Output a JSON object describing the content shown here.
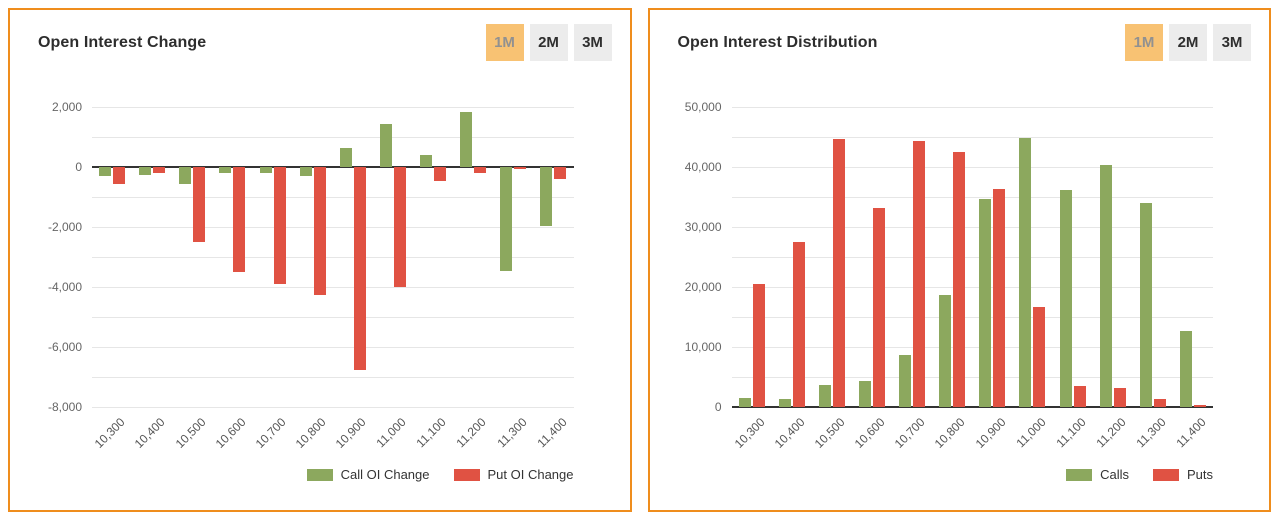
{
  "panels": [
    {
      "title": "Open Interest Change",
      "range_buttons": [
        {
          "label": "1M",
          "active": true
        },
        {
          "label": "2M",
          "active": false
        },
        {
          "label": "3M",
          "active": false
        }
      ]
    },
    {
      "title": "Open Interest Distribution",
      "range_buttons": [
        {
          "label": "1M",
          "active": true
        },
        {
          "label": "2M",
          "active": false
        },
        {
          "label": "3M",
          "active": false
        }
      ]
    }
  ],
  "colors": {
    "panel_border": "#ef8d1d",
    "active_button_bg": "#f8c273",
    "active_button_text": "#919191",
    "inactive_button_bg": "#ececec",
    "call_green": "#8ca85e",
    "put_red": "#e05243",
    "gridline": "#e6e6e6",
    "axis_line": "#333333",
    "axis_label": "#666666"
  },
  "chart_data": [
    {
      "type": "bar",
      "title": "Open Interest Change",
      "categories": [
        "10,300",
        "10,400",
        "10,500",
        "10,600",
        "10,700",
        "10,800",
        "10,900",
        "11,000",
        "11,100",
        "11,200",
        "11,300",
        "11,400"
      ],
      "series": [
        {
          "name": "Call OI Change",
          "color": "#8ca85e",
          "values": [
            -300,
            -250,
            -550,
            -200,
            -200,
            -300,
            650,
            1450,
            400,
            1850,
            -3450,
            -1950
          ]
        },
        {
          "name": "Put OI Change",
          "color": "#e05243",
          "values": [
            -550,
            -200,
            -2500,
            -3500,
            -3900,
            -4250,
            -6750,
            -4000,
            -450,
            -200,
            -60,
            -400
          ]
        }
      ],
      "xlabel": "",
      "ylabel": "",
      "ylim": [
        -8000,
        2000
      ],
      "y_tick_step": 2000,
      "y_grid_step": 1000,
      "grid": true,
      "legend_position": "bottom-right"
    },
    {
      "type": "bar",
      "title": "Open Interest Distribution",
      "categories": [
        "10,300",
        "10,400",
        "10,500",
        "10,600",
        "10,700",
        "10,800",
        "10,900",
        "11,000",
        "11,100",
        "11,200",
        "11,300",
        "11,400"
      ],
      "series": [
        {
          "name": "Calls",
          "color": "#8ca85e",
          "values": [
            1500,
            1300,
            3700,
            4300,
            8700,
            18600,
            34600,
            44900,
            36100,
            40300,
            34000,
            12700
          ]
        },
        {
          "name": "Puts",
          "color": "#e05243",
          "values": [
            20500,
            27500,
            44600,
            33200,
            44400,
            42500,
            36300,
            16600,
            3500,
            3100,
            1300,
            300
          ]
        }
      ],
      "xlabel": "",
      "ylabel": "",
      "ylim": [
        0,
        50000
      ],
      "y_tick_step": 10000,
      "y_grid_step": 5000,
      "grid": true,
      "legend_position": "bottom-right"
    }
  ]
}
